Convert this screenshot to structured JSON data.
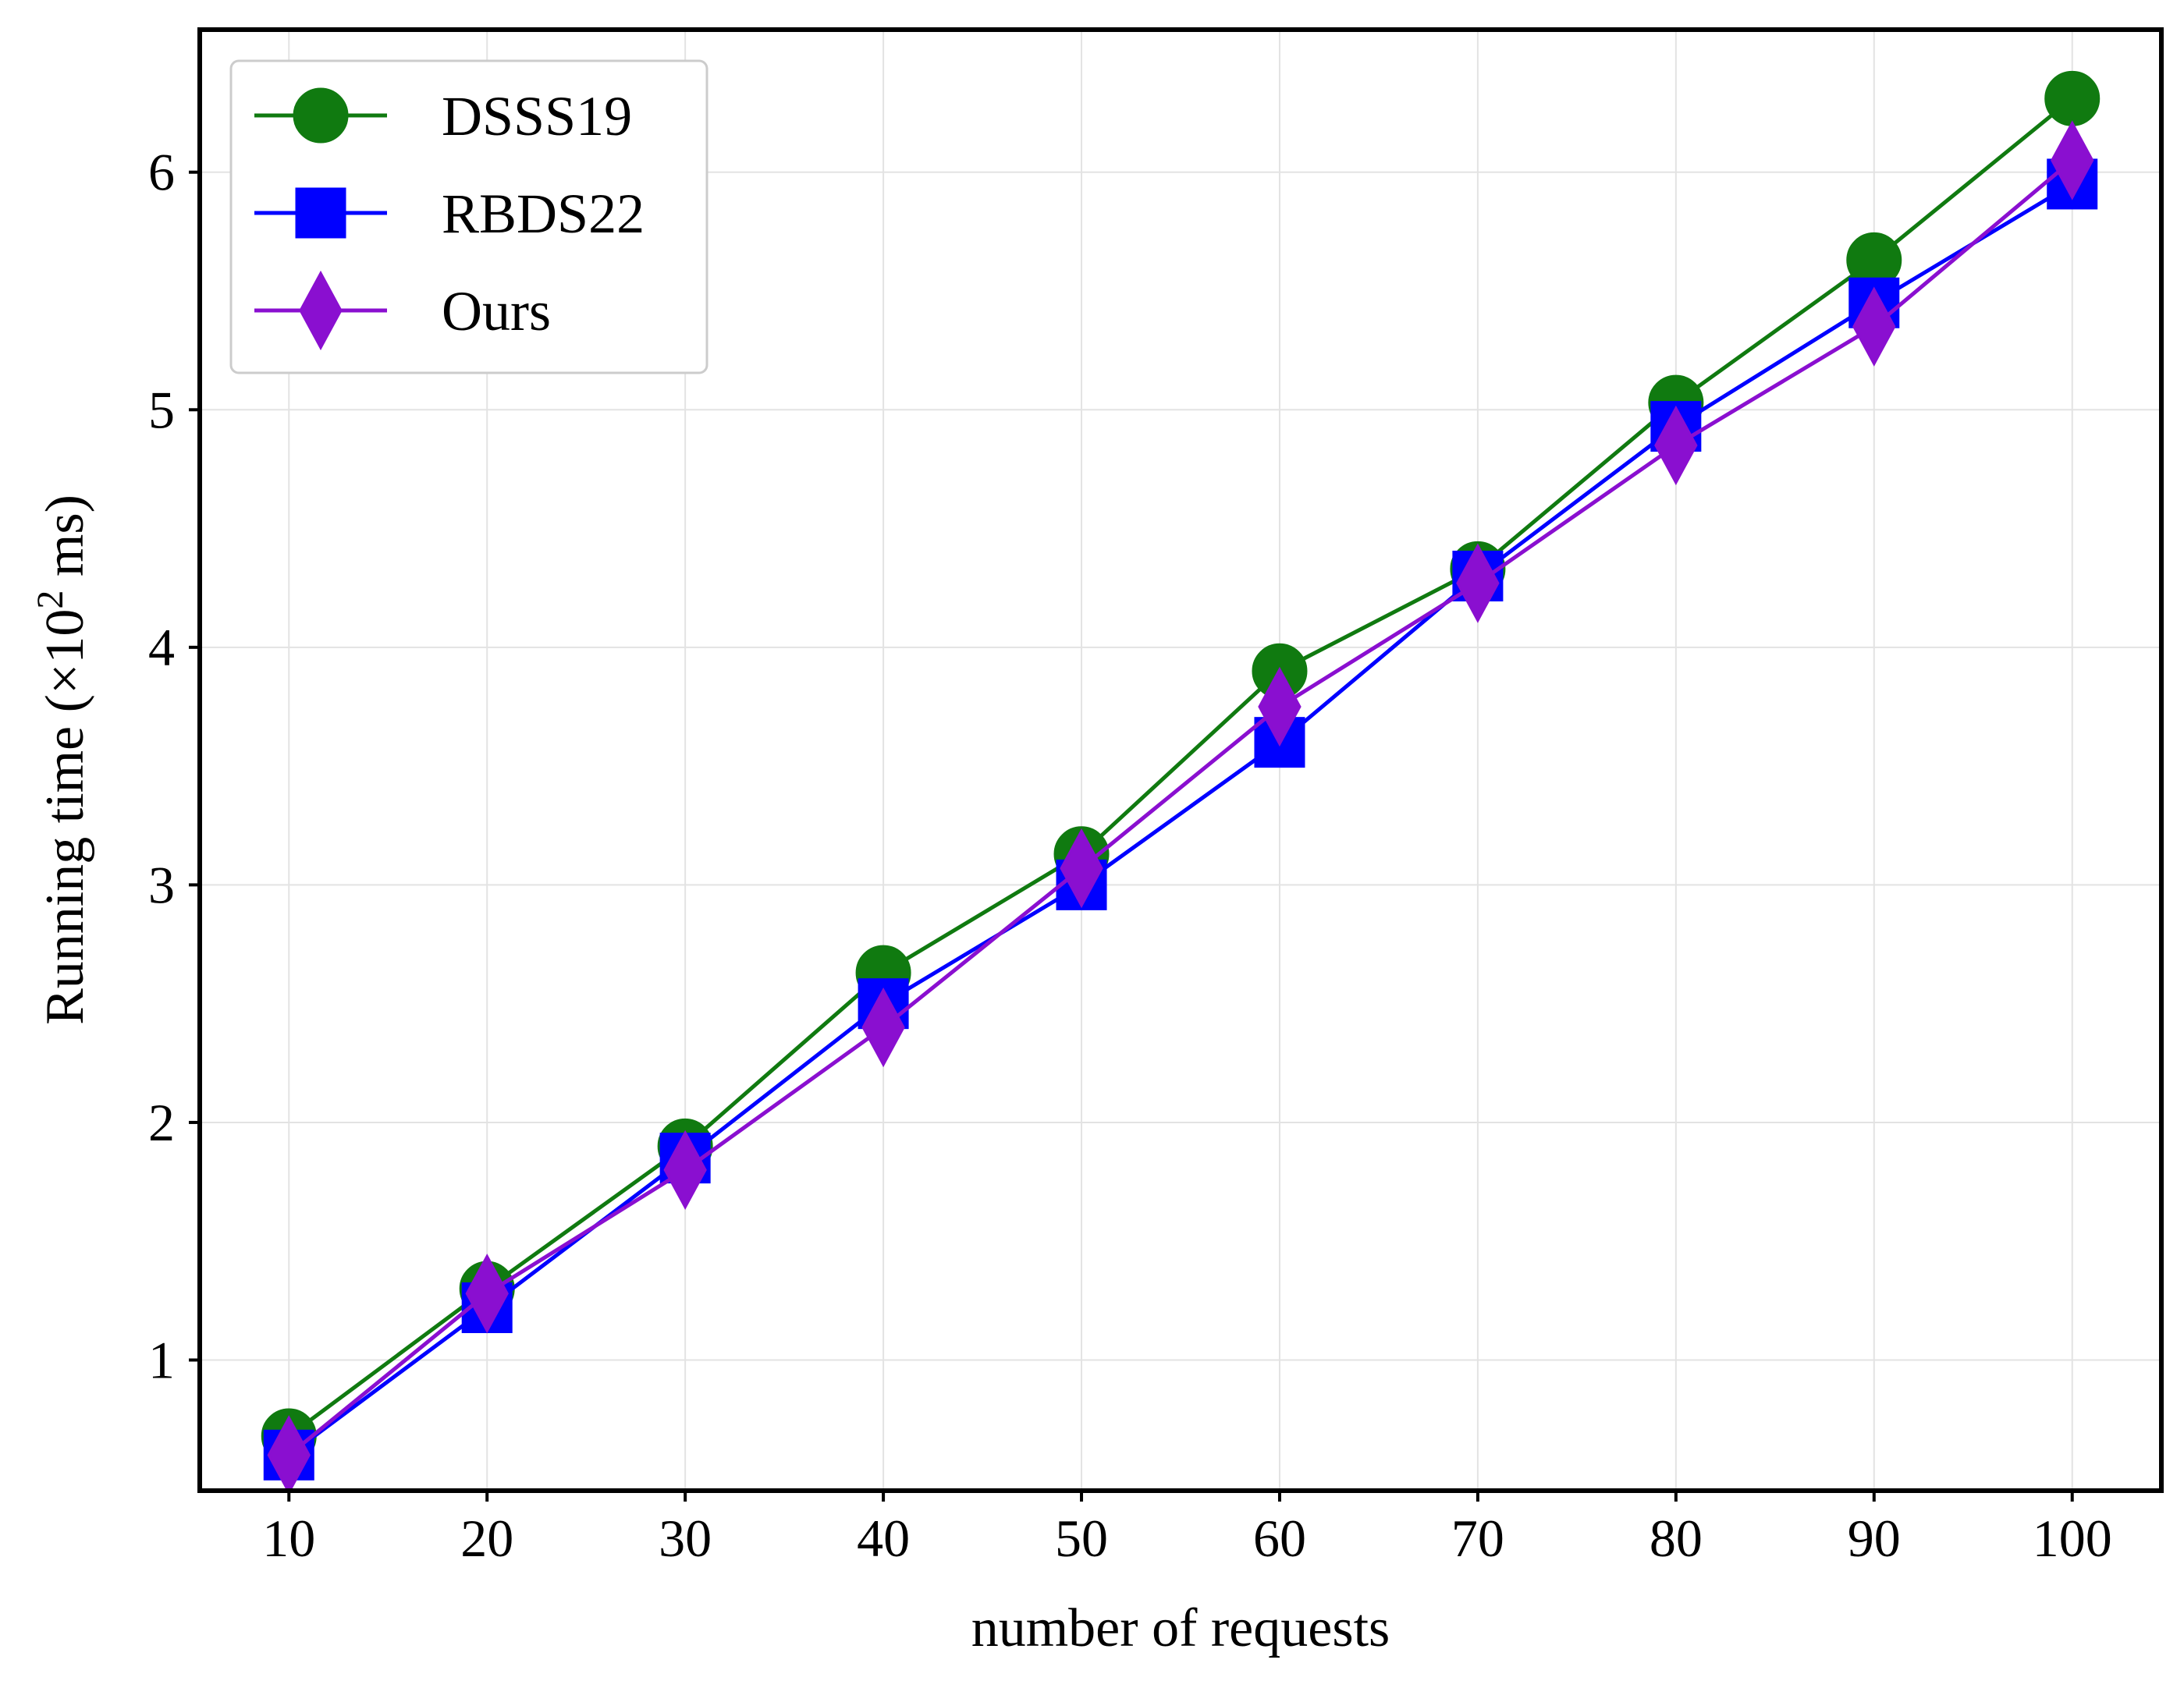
{
  "chart_data": {
    "type": "line",
    "title": "",
    "xlabel": "number of requests",
    "ylabel_prefix": "Running time (×10",
    "ylabel_sup": "2",
    "ylabel_suffix": " ms)",
    "x": [
      10,
      20,
      30,
      40,
      50,
      60,
      70,
      80,
      90,
      100
    ],
    "x_ticks": [
      "10",
      "20",
      "30",
      "40",
      "50",
      "60",
      "70",
      "80",
      "90",
      "100"
    ],
    "y_ticks": [
      "1",
      "2",
      "3",
      "4",
      "5",
      "6"
    ],
    "xlim": [
      5.5,
      104.5
    ],
    "ylim": [
      0.45,
      6.6
    ],
    "grid": true,
    "legend_position": "top-left",
    "series": [
      {
        "name": "DSSS19",
        "color": "#107a10",
        "marker": "circle",
        "values": [
          0.68,
          1.3,
          1.9,
          2.63,
          3.13,
          3.9,
          4.33,
          5.03,
          5.63,
          6.31
        ]
      },
      {
        "name": "RBDS22",
        "color": "#0000ff",
        "marker": "square",
        "values": [
          0.6,
          1.22,
          1.85,
          2.5,
          3.0,
          3.6,
          4.3,
          4.93,
          5.45,
          5.95
        ]
      },
      {
        "name": "Ours",
        "color": "#8a0fd0",
        "marker": "diamond",
        "values": [
          0.6,
          1.28,
          1.8,
          2.4,
          3.07,
          3.75,
          4.27,
          4.85,
          5.35,
          6.05
        ]
      }
    ]
  }
}
